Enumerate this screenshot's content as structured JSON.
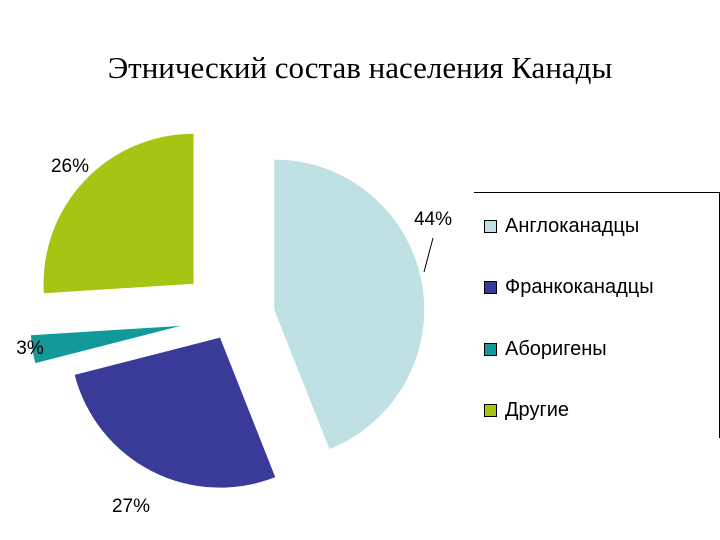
{
  "chart_data": {
    "type": "pie",
    "title": "Этнический состав населения Канады",
    "legend_position": "right",
    "exploded": true,
    "slices": [
      {
        "label": "Англоканадцы",
        "value": 44,
        "value_label": "44%",
        "color": "#c0e1e4"
      },
      {
        "label": "Франкоканадцы",
        "value": 27,
        "value_label": "27%",
        "color": "#3a3a98"
      },
      {
        "label": "Аборигены",
        "value": 3,
        "value_label": "3%",
        "color": "#12999a"
      },
      {
        "label": "Другие",
        "value": 26,
        "value_label": "26%",
        "color": "#a4c612"
      }
    ]
  }
}
